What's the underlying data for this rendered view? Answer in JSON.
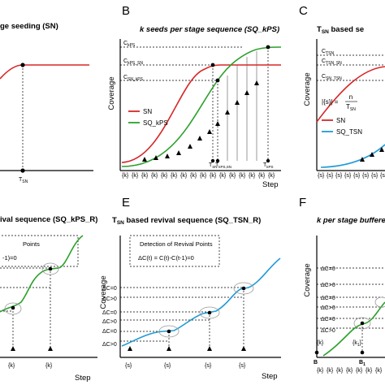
{
  "chart_data": [
    {
      "panel": "A",
      "type": "line",
      "title": "ge seeding (SN)",
      "xlabel": "",
      "ylabel": "",
      "x_ticks": [
        "T_SN"
      ],
      "series": [
        {
          "name": "",
          "color": "#d62728",
          "x": [
            0,
            0.5,
            1,
            1.5,
            2
          ],
          "y": [
            0.78,
            0.86,
            0.9,
            0.9,
            0.9
          ]
        }
      ]
    },
    {
      "panel": "B",
      "type": "line",
      "title": "k seeds per stage sequence (SQ_kPS)",
      "xlabel": "Step",
      "ylabel": "Coverage",
      "y_levels": [
        "C_kPS",
        "C_kPS_SN",
        "C_SN_kPS"
      ],
      "x_ticks": [
        "T_SN",
        "T_kPS,SN",
        "T_kPS"
      ],
      "x_step_labels": [
        "{k}",
        "{k}",
        "{k}",
        "{k}",
        "{k}",
        "{k}",
        "{k}",
        "{k}",
        "{k}",
        "{k}",
        "{k}",
        "{k}",
        "{k}",
        "{k}",
        "{k}",
        "{k}"
      ],
      "series": [
        {
          "name": "SN",
          "color": "#d62728"
        },
        {
          "name": "SQ_kPS",
          "color": "#2ca02c"
        }
      ]
    },
    {
      "panel": "C",
      "type": "line",
      "title": "T_SN based se",
      "xlabel": "",
      "ylabel": "Coverage",
      "y_levels": [
        "C_TSN",
        "C_TSN_SN",
        "C_SN_TSN"
      ],
      "x_step_labels": [
        "{s}",
        "{s}",
        "{s}",
        "{s}",
        "{s}",
        "{s}",
        "{s}",
        "{s}"
      ],
      "series": [
        {
          "name": "SN",
          "color": "#d62728"
        },
        {
          "name": "SQ_TSN",
          "color": "#1f9bd6"
        }
      ]
    },
    {
      "panel": "D",
      "type": "line",
      "title": "ival sequence (SQ_kPS_R)",
      "xlabel": "Step",
      "ylabel": "",
      "x_step_labels": [
        "{k}",
        "{k}"
      ],
      "series": [
        {
          "name": "",
          "color": "#2ca02c"
        }
      ]
    },
    {
      "panel": "E",
      "type": "line",
      "title": "T_SN based revival sequence (SQ_TSN_R)",
      "xlabel": "Step",
      "ylabel": "Coverage",
      "y_levels": [
        "ΔC=0",
        "ΔC>0",
        "ΔC=0",
        "ΔC>0",
        "ΔC=0",
        "ΔC>0"
      ],
      "x_step_labels": [
        "{s}",
        "{s}",
        "{s}",
        "{s}"
      ],
      "series": [
        {
          "name": "",
          "color": "#1f9bd6"
        }
      ]
    },
    {
      "panel": "F",
      "type": "line",
      "title": "k per stage buffere",
      "xlabel": "",
      "ylabel": "Coverage",
      "y_levels": [
        "ΔC=0",
        "ΔC>0",
        "ΔC=0",
        "ΔC>0",
        "ΔC=0",
        "ΔC>0"
      ],
      "x_step_labels": [
        "{k}",
        "{k}",
        "{k}",
        "{k}",
        "{k}",
        "{k}",
        "{k}"
      ],
      "x_ticks": [
        "B",
        "B_1"
      ],
      "series": [
        {
          "name": "",
          "color": "#2ca02c"
        }
      ]
    }
  ],
  "panels": {
    "a": {
      "title": "ge seeding (SN)",
      "tsn": "T",
      "tsn_sub": "SN"
    },
    "b": {
      "letter": "B",
      "title": "k seeds per stage sequence (SQ_kPS)",
      "ylabel": "Coverage",
      "xlabel": "Step",
      "c1": "C",
      "c1_sub": "kPS",
      "c2": "C",
      "c2_sub": "kPS_SN",
      "c3": "C",
      "c3_sub": "SN_kPS",
      "leg1": "SN",
      "leg2": "SQ_kPS",
      "t1": "T",
      "t1_sub": "SN",
      "t2": "T",
      "t2_sub": "kPS,SN",
      "t3": "T",
      "t3_sub": "kPS",
      "step": "{k}"
    },
    "c": {
      "letter": "C",
      "title_pre": "T",
      "title_sub": "SN",
      "title_post": " based se",
      "ylabel": "Coverage",
      "c1": "C",
      "c1_sub": "TSN",
      "c2": "C",
      "c2_sub": "TSN_SN",
      "c3": "C",
      "c3_sub": "SN_TSN",
      "formula_left": "|{s}| =",
      "formula_num": "n",
      "formula_den": "T",
      "formula_den_sub": "SN",
      "leg1": "SN",
      "leg2": "SQ_TSN",
      "step": "{s}"
    },
    "d": {
      "title": "ival sequence (SQ_kPS_R)",
      "box_line1": "Points",
      "box_line2": "-1)=0",
      "xlabel": "Step",
      "step": "{k}"
    },
    "e": {
      "letter": "E",
      "title_pre": "T",
      "title_sub": "SN",
      "title_post": " based revival sequence (SQ_TSN_R)",
      "ylabel": "Coverage",
      "xlabel": "Step",
      "box_line1": "Detection of Revival Points",
      "box_line2": "ΔC(t) = C(t)-C(t-1)=0",
      "lvl_zero": "ΔC=0",
      "lvl_pos": "ΔC>0",
      "step": "{s}"
    },
    "f": {
      "letter": "F",
      "title": "k per stage buffere",
      "ylabel": "Coverage",
      "lvl_zero": "ΔC=0",
      "lvl_pos": "ΔC>0",
      "step": "{k}",
      "b": "B",
      "b1": "B",
      "b1_sub": "1",
      "k1": "{k",
      "k1_sub": "1",
      "k1_end": "}"
    }
  },
  "colors": {
    "red": "#d62728",
    "green": "#2ca02c",
    "blue": "#1f9bd6"
  }
}
